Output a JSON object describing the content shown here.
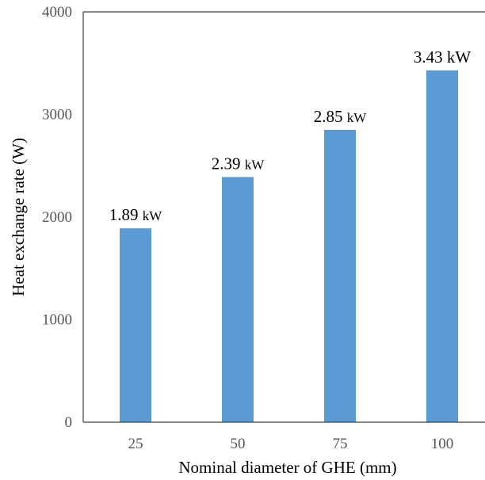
{
  "chart_data": {
    "type": "bar",
    "categories": [
      "25",
      "50",
      "75",
      "100"
    ],
    "values": [
      1890,
      2390,
      2850,
      3430
    ],
    "data_labels": [
      {
        "number": "1.89",
        "unit": "kW"
      },
      {
        "number": "2.39",
        "unit": "kW"
      },
      {
        "number": "2.85",
        "unit": "kW"
      },
      {
        "number": "3.43",
        "unit": "kW"
      }
    ],
    "xlabel": "Nominal diameter of GHE (mm)",
    "ylabel": "Heat exchange rate (W)",
    "ylim": [
      0,
      4000
    ],
    "yticks": [
      "0",
      "1000",
      "2000",
      "3000",
      "4000"
    ],
    "grid": false,
    "bar_color": "#5B9BD5",
    "axis_color": "#404040"
  }
}
